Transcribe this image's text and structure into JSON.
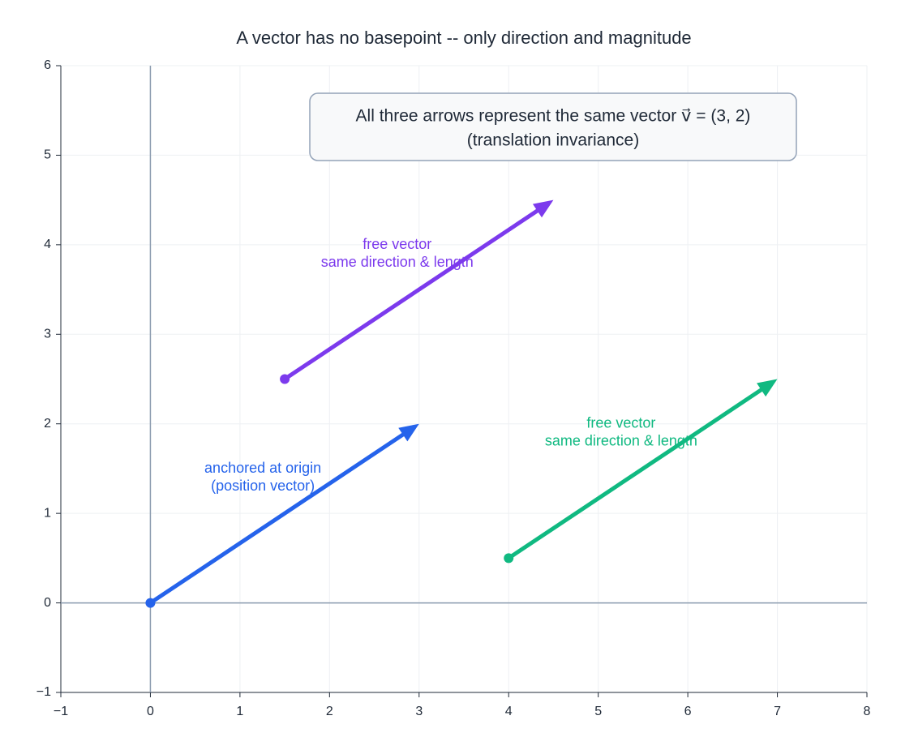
{
  "chart_data": {
    "type": "quiver",
    "title": "A vector has no basepoint -- only direction and magnitude",
    "note": [
      "All three arrows represent the same vector  v⃗ = (3, 2)",
      "(translation invariance)"
    ],
    "series": [
      {
        "label": [
          "anchored at origin",
          "(position vector)"
        ],
        "color": "#2563eb",
        "tail": [
          0,
          0
        ],
        "head": [
          3,
          2
        ]
      },
      {
        "label": [
          "free vector",
          "same direction & length"
        ],
        "color": "#7c3aed",
        "tail": [
          1.5,
          2.5
        ],
        "head": [
          4.5,
          4.5
        ]
      },
      {
        "label": [
          "free vector",
          "same direction & length"
        ],
        "color": "#10b981",
        "tail": [
          4,
          0.5
        ],
        "head": [
          7,
          2.5
        ]
      }
    ],
    "xlim": [
      -1,
      8
    ],
    "ylim": [
      -1,
      6
    ],
    "xticks": [
      {
        "value": -1,
        "label": "−1"
      },
      0,
      1,
      2,
      3,
      4,
      5,
      6,
      7,
      8
    ],
    "yticks": [
      {
        "value": -1,
        "label": "−1"
      },
      0,
      1,
      2,
      3,
      4,
      5,
      6
    ],
    "grid": true
  }
}
